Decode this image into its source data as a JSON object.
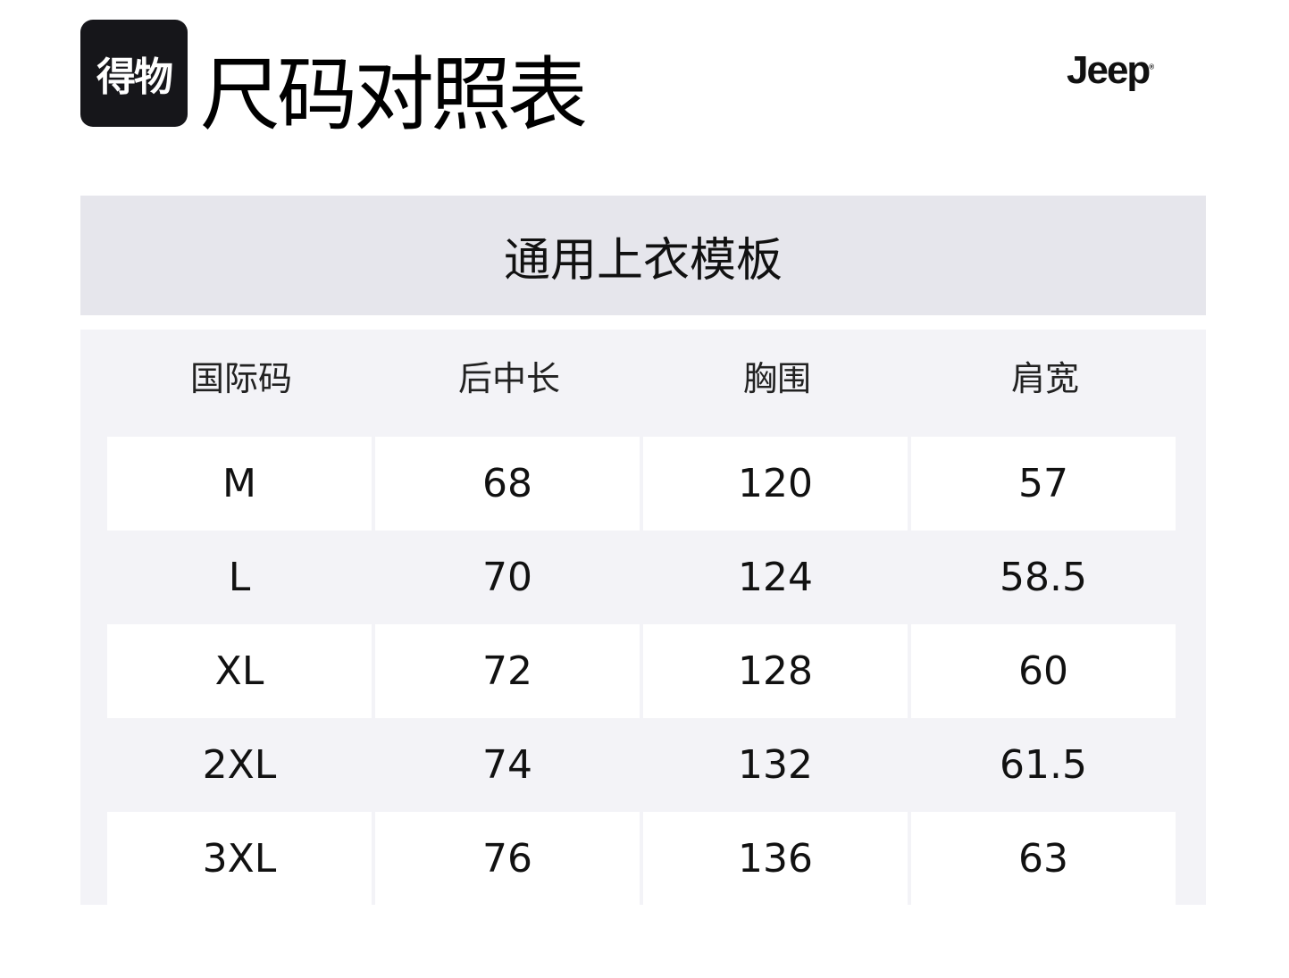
{
  "header": {
    "logo_text": "得物",
    "title": "尺码对照表",
    "brand": "Jeep"
  },
  "template_name": "通用上衣模板",
  "table": {
    "columns": [
      "国际码",
      "后中长",
      "胸围",
      "肩宽"
    ],
    "rows": [
      [
        "M",
        "68",
        "120",
        "57"
      ],
      [
        "L",
        "70",
        "124",
        "58.5"
      ],
      [
        "XL",
        "72",
        "128",
        "60"
      ],
      [
        "2XL",
        "74",
        "132",
        "61.5"
      ],
      [
        "3XL",
        "76",
        "136",
        "63"
      ]
    ]
  }
}
